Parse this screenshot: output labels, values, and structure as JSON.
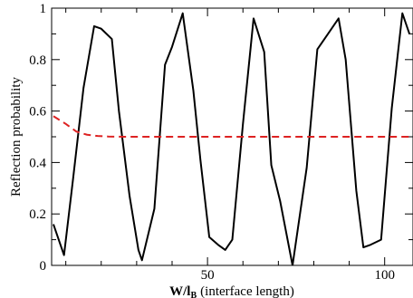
{
  "chart_data": {
    "type": "line",
    "title": "",
    "ylabel": "Reflection probability",
    "xlabel_main": "W/l",
    "xlabel_sub": "B",
    "xlabel_suffix": "(interface length)",
    "xlim": [
      6,
      108
    ],
    "ylim": [
      0,
      1
    ],
    "grid": false,
    "x_major_ticks": [
      50,
      100
    ],
    "x_minor_ticks": [
      10,
      20,
      30,
      40,
      60,
      70,
      80,
      90
    ],
    "y_major_ticks": [
      0,
      0.2,
      0.4,
      0.6,
      0.8,
      1
    ],
    "y_minor_ticks": [
      0.1,
      0.3,
      0.5,
      0.7,
      0.9
    ],
    "x_tick_labels": [
      "50",
      "100"
    ],
    "y_tick_labels": [
      "0",
      "0.2",
      "0.4",
      "0.6",
      "0.8",
      "1"
    ],
    "series": [
      {
        "color": "#000000",
        "style": "solid",
        "x": [
          6.5,
          9.5,
          12,
          15,
          18,
          20,
          23,
          25,
          28,
          30.5,
          31.5,
          35,
          38,
          40,
          43,
          46,
          48,
          50.5,
          53,
          55,
          57,
          60,
          63,
          66,
          68,
          70.5,
          74,
          78,
          81,
          84,
          87,
          89,
          92,
          94,
          96,
          99,
          102,
          105,
          107
        ],
        "y": [
          0.16,
          0.04,
          0.33,
          0.69,
          0.93,
          0.92,
          0.88,
          0.6,
          0.27,
          0.06,
          0.02,
          0.22,
          0.78,
          0.85,
          0.98,
          0.68,
          0.41,
          0.11,
          0.08,
          0.06,
          0.1,
          0.55,
          0.96,
          0.83,
          0.39,
          0.25,
          0.0,
          0.38,
          0.84,
          0.9,
          0.96,
          0.8,
          0.29,
          0.07,
          0.08,
          0.1,
          0.61,
          0.98,
          0.9
        ]
      },
      {
        "color": "#dd2222",
        "style": "dashed",
        "x": [
          6.5,
          10,
          13,
          16,
          19,
          22,
          26,
          30,
          40,
          60,
          80,
          100,
          108
        ],
        "y": [
          0.58,
          0.55,
          0.52,
          0.508,
          0.503,
          0.501,
          0.5,
          0.5,
          0.5,
          0.5,
          0.5,
          0.5,
          0.5
        ]
      }
    ]
  }
}
